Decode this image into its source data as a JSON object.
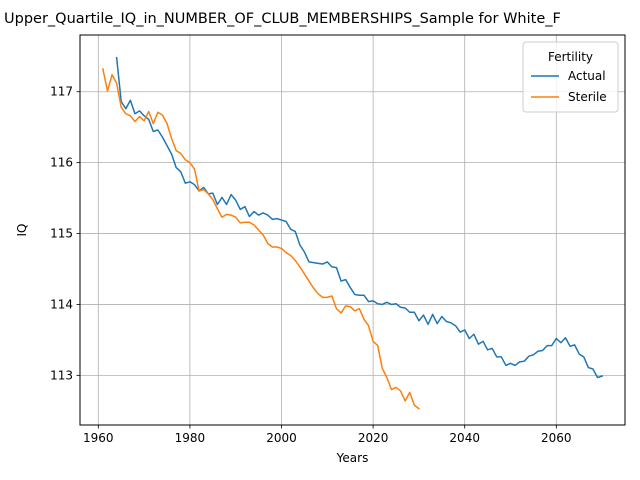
{
  "chart_data": {
    "type": "line",
    "title": "Upper_Quartile_IQ_in_NUMBER_OF_CLUB_MEMBERSHIPS_Sample for White_F",
    "xlabel": "Years",
    "ylabel": "IQ",
    "xlim": [
      1956,
      2075
    ],
    "ylim": [
      112.3,
      117.8
    ],
    "x_ticks": [
      1960,
      1980,
      2000,
      2020,
      2040,
      2060
    ],
    "y_ticks": [
      113,
      114,
      115,
      116,
      117
    ],
    "grid": true,
    "legend": {
      "title": "Fertility",
      "placement": "top-right"
    },
    "series": [
      {
        "name": "Actual",
        "color": "#1f77b4",
        "x": [
          1964,
          1965,
          1966,
          1967,
          1968,
          1969,
          1970,
          1971,
          1972,
          1973,
          1974,
          1975,
          1976,
          1977,
          1978,
          1979,
          1980,
          1981,
          1982,
          1983,
          1984,
          1985,
          1986,
          1987,
          1988,
          1989,
          1990,
          1991,
          1992,
          1993,
          1994,
          1995,
          1996,
          1997,
          1998,
          1999,
          2000,
          2001,
          2002,
          2003,
          2004,
          2005,
          2006,
          2007,
          2008,
          2009,
          2010,
          2011,
          2012,
          2013,
          2014,
          2015,
          2016,
          2017,
          2018,
          2019,
          2020,
          2021,
          2022,
          2023,
          2024,
          2025,
          2026,
          2027,
          2028,
          2029,
          2030,
          2031,
          2032,
          2033,
          2034,
          2035,
          2036,
          2037,
          2038,
          2039,
          2040,
          2041,
          2042,
          2043,
          2044,
          2045,
          2046,
          2047,
          2048,
          2049,
          2050,
          2051,
          2052,
          2053,
          2054,
          2055,
          2056,
          2057,
          2058,
          2059,
          2060,
          2061,
          2062,
          2063,
          2064,
          2065,
          2066,
          2067,
          2068,
          2069,
          2070
        ],
        "y": [
          117.48,
          116.86,
          116.76,
          116.88,
          116.69,
          116.73,
          116.66,
          116.61,
          116.44,
          116.46,
          116.36,
          116.24,
          116.12,
          115.93,
          115.87,
          115.71,
          115.73,
          115.69,
          115.6,
          115.65,
          115.56,
          115.57,
          115.41,
          115.51,
          115.41,
          115.55,
          115.47,
          115.34,
          115.38,
          115.24,
          115.31,
          115.26,
          115.29,
          115.26,
          115.2,
          115.21,
          115.19,
          115.17,
          115.06,
          115.03,
          114.84,
          114.74,
          114.6,
          114.59,
          114.58,
          114.57,
          114.6,
          114.53,
          114.52,
          114.33,
          114.35,
          114.24,
          114.14,
          114.13,
          114.13,
          114.04,
          114.05,
          114.01,
          114.0,
          114.03,
          114.0,
          114.01,
          113.96,
          113.95,
          113.89,
          113.89,
          113.77,
          113.85,
          113.72,
          113.86,
          113.73,
          113.83,
          113.76,
          113.74,
          113.7,
          113.61,
          113.64,
          113.52,
          113.58,
          113.44,
          113.48,
          113.36,
          113.38,
          113.26,
          113.26,
          113.14,
          113.17,
          113.14,
          113.19,
          113.2,
          113.27,
          113.29,
          113.34,
          113.35,
          113.42,
          113.42,
          113.52,
          113.46,
          113.53,
          113.41,
          113.43,
          113.3,
          113.26,
          113.11,
          113.09,
          112.97,
          112.99
        ]
      },
      {
        "name": "Sterile",
        "color": "#ff7f0e",
        "x": [
          1961,
          1962,
          1963,
          1964,
          1965,
          1966,
          1967,
          1968,
          1969,
          1970,
          1971,
          1972,
          1973,
          1974,
          1975,
          1976,
          1977,
          1978,
          1979,
          1980,
          1981,
          1982,
          1983,
          1984,
          1985,
          1986,
          1987,
          1988,
          1989,
          1990,
          1991,
          1992,
          1993,
          1994,
          1995,
          1996,
          1997,
          1998,
          1999,
          2000,
          2001,
          2002,
          2003,
          2004,
          2005,
          2006,
          2007,
          2008,
          2009,
          2010,
          2011,
          2012,
          2013,
          2014,
          2015,
          2016,
          2017,
          2018,
          2019,
          2020,
          2021,
          2022,
          2023,
          2024,
          2025,
          2026,
          2027,
          2028,
          2029,
          2030
        ],
        "y": [
          117.32,
          117.01,
          117.24,
          117.12,
          116.78,
          116.69,
          116.66,
          116.58,
          116.65,
          116.59,
          116.72,
          116.55,
          116.71,
          116.67,
          116.55,
          116.34,
          116.17,
          116.13,
          116.04,
          116.0,
          115.91,
          115.6,
          115.62,
          115.56,
          115.48,
          115.35,
          115.23,
          115.27,
          115.26,
          115.23,
          115.15,
          115.16,
          115.16,
          115.12,
          115.05,
          114.98,
          114.86,
          114.81,
          114.81,
          114.79,
          114.73,
          114.69,
          114.62,
          114.53,
          114.43,
          114.33,
          114.23,
          114.15,
          114.1,
          114.1,
          114.12,
          113.94,
          113.88,
          113.98,
          113.97,
          113.91,
          113.94,
          113.79,
          113.7,
          113.48,
          113.42,
          113.1,
          112.97,
          112.8,
          112.83,
          112.78,
          112.64,
          112.76,
          112.58,
          112.53
        ]
      }
    ]
  }
}
